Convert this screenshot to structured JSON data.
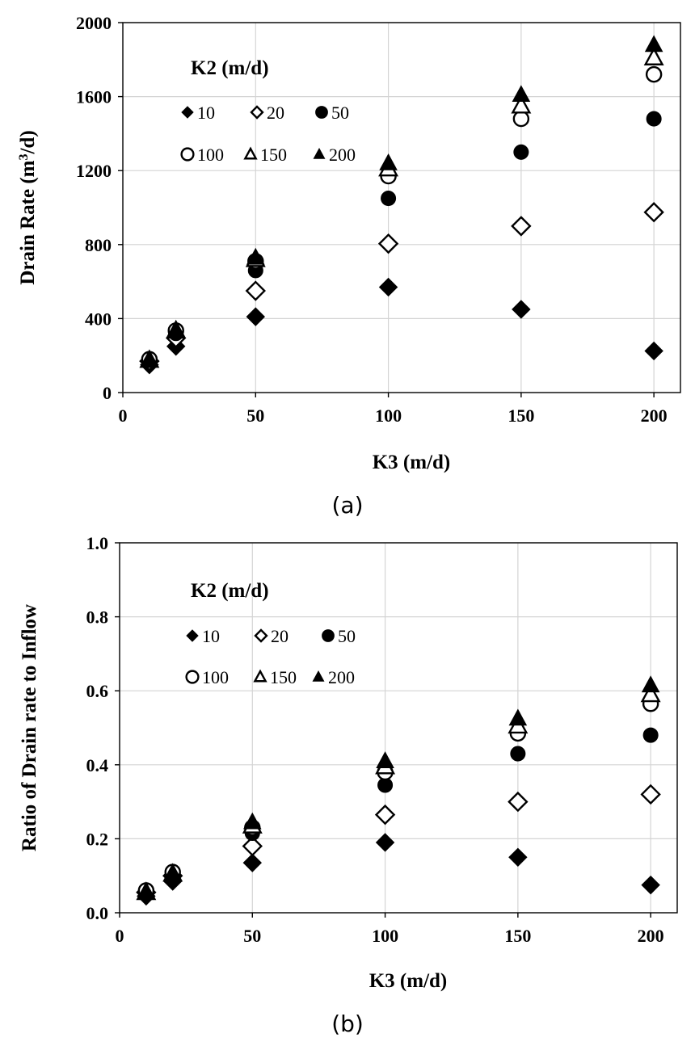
{
  "chart_data": [
    {
      "type": "scatter",
      "caption": "(a)",
      "xlabel": "K3 (m/d)",
      "ylabel_main": "Drain Rate (m",
      "ylabel_sup": "3",
      "ylabel_end": "/d)",
      "xlim": [
        0,
        210
      ],
      "ylim": [
        0,
        2000
      ],
      "xticks": [
        0,
        50,
        100,
        150,
        200
      ],
      "yticks": [
        0,
        400,
        800,
        1200,
        1600,
        2000
      ],
      "grid": true,
      "legend_title": "K2 (m/d)",
      "legend_placement": "top-left",
      "x": [
        10,
        20,
        50,
        100,
        150,
        200
      ],
      "series": [
        {
          "name": "10",
          "marker": "diamond-filled",
          "values": [
            150,
            250,
            410,
            570,
            450,
            225
          ]
        },
        {
          "name": "20",
          "marker": "diamond-open",
          "values": [
            170,
            295,
            550,
            805,
            900,
            975
          ]
        },
        {
          "name": "50",
          "marker": "circle-filled",
          "values": [
            175,
            320,
            660,
            1050,
            1300,
            1480
          ]
        },
        {
          "name": "100",
          "marker": "circle-open",
          "values": [
            180,
            335,
            710,
            1170,
            1480,
            1720
          ]
        },
        {
          "name": "150",
          "marker": "triangle-open",
          "values": [
            175,
            335,
            720,
            1210,
            1550,
            1810
          ]
        },
        {
          "name": "200",
          "marker": "triangle-filled",
          "values": [
            175,
            330,
            730,
            1240,
            1610,
            1880
          ]
        }
      ]
    },
    {
      "type": "scatter",
      "caption": "(b)",
      "xlabel": "K3 (m/d)",
      "ylabel_main": "Ratio of  Drain rate to Inflow",
      "ylabel_sup": "",
      "ylabel_end": "",
      "xlim": [
        0,
        210
      ],
      "ylim": [
        0,
        1.0
      ],
      "xticks": [
        0,
        50,
        100,
        150,
        200
      ],
      "yticks": [
        0.0,
        0.2,
        0.4,
        0.6,
        0.8,
        1.0
      ],
      "ytick_labels": [
        "0.0",
        "0.2",
        "0.4",
        "0.6",
        "0.8",
        "1.0"
      ],
      "grid": true,
      "legend_title": "K2 (m/d)",
      "legend_placement": "top-left",
      "x": [
        10,
        20,
        50,
        100,
        150,
        200
      ],
      "series": [
        {
          "name": "10",
          "marker": "diamond-filled",
          "values": [
            0.045,
            0.085,
            0.135,
            0.19,
            0.15,
            0.075
          ]
        },
        {
          "name": "20",
          "marker": "diamond-open",
          "values": [
            0.055,
            0.1,
            0.18,
            0.265,
            0.3,
            0.32
          ]
        },
        {
          "name": "50",
          "marker": "circle-filled",
          "values": [
            0.055,
            0.1,
            0.215,
            0.345,
            0.43,
            0.48
          ]
        },
        {
          "name": "100",
          "marker": "circle-open",
          "values": [
            0.06,
            0.11,
            0.23,
            0.38,
            0.485,
            0.565
          ]
        },
        {
          "name": "150",
          "marker": "triangle-open",
          "values": [
            0.055,
            0.105,
            0.235,
            0.395,
            0.505,
            0.59
          ]
        },
        {
          "name": "200",
          "marker": "triangle-filled",
          "values": [
            0.055,
            0.105,
            0.245,
            0.41,
            0.525,
            0.615
          ]
        }
      ]
    }
  ]
}
